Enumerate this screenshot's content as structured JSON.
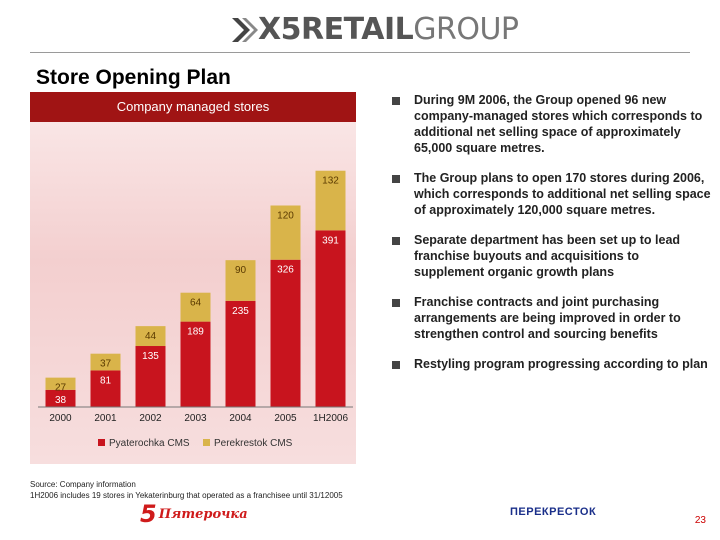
{
  "header": {
    "logo_x5": "X5",
    "logo_retail": "RETAIL",
    "logo_group": "GROUP"
  },
  "page_title": "Store Opening Plan",
  "chart_header": "Company managed stores",
  "chart_data": {
    "type": "bar",
    "stacked": true,
    "title": "Company managed stores",
    "categories": [
      "2000",
      "2001",
      "2002",
      "2003",
      "2004",
      "2005",
      "1H2006"
    ],
    "series": [
      {
        "name": "Pyaterochka CMS",
        "color": "#c8141e",
        "values": [
          38,
          81,
          135,
          189,
          235,
          326,
          391
        ]
      },
      {
        "name": "Perekrestok CMS",
        "color": "#d9b44a",
        "values": [
          27,
          37,
          44,
          64,
          90,
          120,
          132
        ]
      }
    ],
    "legend": [
      "Pyaterochka CMS",
      "Perekrestok CMS"
    ],
    "legend_position": "bottom",
    "ylim": [
      0,
      560
    ]
  },
  "bullets": [
    "During 9M 2006, the Group opened 96 new company-managed stores which corresponds to additional net selling space of approximately 65,000 square metres.",
    "The Group plans to open 170 stores during 2006, which corresponds to additional net selling space of approximately 120,000 square metres.",
    "Separate department has been set up to lead franchise buyouts and acquisitions to supplement organic growth plans",
    "Franchise contracts and joint purchasing arrangements are being improved in order to strengthen control and sourcing benefits",
    "Restyling program progressing according to plan"
  ],
  "source": {
    "line1": "Source:     Company information",
    "line2": "1H2006 includes 19 stores in Yekaterinburg that operated as a franchisee until 31/12005"
  },
  "logos": {
    "pyaterochka_num": "5",
    "pyaterochka_word": "Пятерочка",
    "perekrestok": "ПЕРЕКРЕСТОК"
  },
  "page_number": "23",
  "colors": {
    "accent": "#a01414",
    "pyaterochka": "#c8141e",
    "perekrestok": "#d9b44a"
  }
}
